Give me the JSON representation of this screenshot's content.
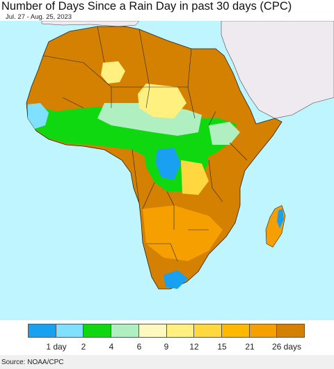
{
  "header": {
    "title": "Number of Days Since a Rain Day in past 30 days (CPC)",
    "subtitle": "Jul. 27 - Aug. 25, 2023"
  },
  "map": {
    "ocean_color": "#bff5ff",
    "land_outside_color": "#eeeaf0",
    "border_color": "#000000"
  },
  "legend": {
    "swatches": [
      {
        "color": "#1aa0f0"
      },
      {
        "color": "#80e0ff"
      },
      {
        "color": "#10d810"
      },
      {
        "color": "#b0f0c0"
      },
      {
        "color": "#fff8c0"
      },
      {
        "color": "#fff080"
      },
      {
        "color": "#ffd840"
      },
      {
        "color": "#ffb800"
      },
      {
        "color": "#f5a000"
      },
      {
        "color": "#d48000"
      }
    ],
    "labels": [
      "1 day",
      "2",
      "4",
      "6",
      "9",
      "12",
      "15",
      "21",
      "26 days"
    ]
  },
  "footer": {
    "source": "Source: NOAA/CPC"
  }
}
